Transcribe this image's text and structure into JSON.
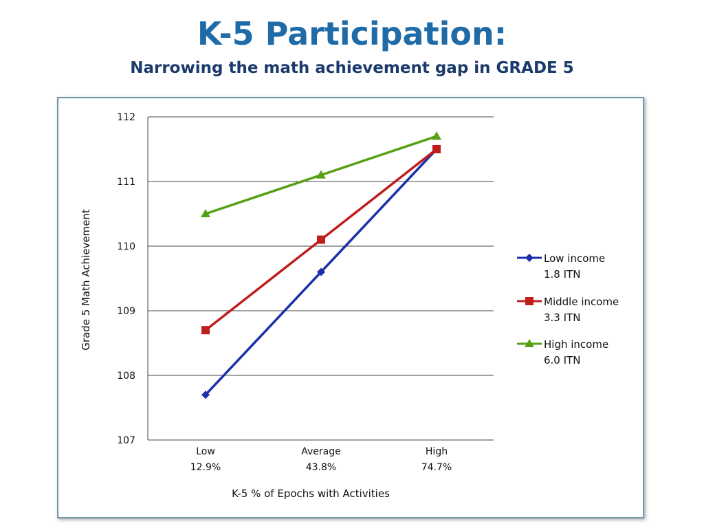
{
  "title": "K-5 Participation:",
  "subtitle": "Narrowing the math achievement gap in GRADE 5",
  "chart_data": {
    "type": "line",
    "categories": [
      {
        "label": "Low",
        "sublabel": "12.9%"
      },
      {
        "label": "Average",
        "sublabel": "43.8%"
      },
      {
        "label": "High",
        "sublabel": "74.7%"
      }
    ],
    "xlabel": "K-5  %  of  Epochs with Activities",
    "ylabel": "Grade 5 Math Achievement",
    "ylim": [
      107,
      112
    ],
    "yticks": [
      107,
      108,
      109,
      110,
      111,
      112
    ],
    "grid": true,
    "legend_position": "right",
    "series": [
      {
        "name": "Low income",
        "sub": "1.8 ITN",
        "color": "#1a2fa8",
        "marker": "diamond",
        "values": [
          107.7,
          109.6,
          111.5
        ]
      },
      {
        "name": "Middle income",
        "sub": "3.3 ITN",
        "color": "#c01d1d",
        "marker": "square",
        "values": [
          108.7,
          110.1,
          111.5
        ]
      },
      {
        "name": "High income",
        "sub": "6.0 ITN",
        "color": "#55a014",
        "marker": "triangle",
        "values": [
          110.5,
          111.1,
          111.7
        ]
      }
    ]
  }
}
